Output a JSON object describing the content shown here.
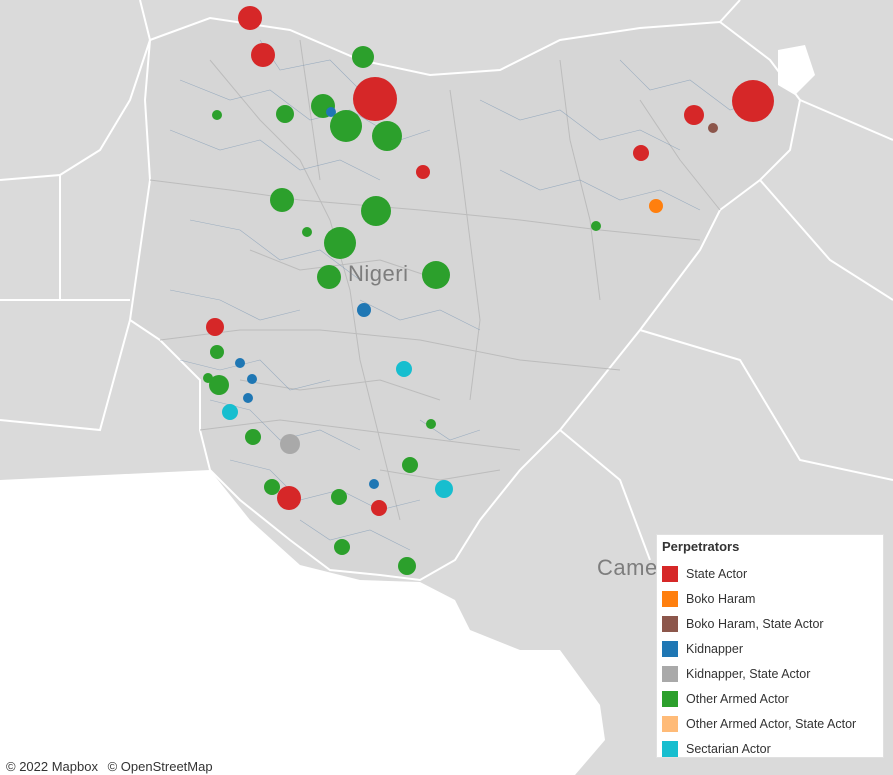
{
  "map": {
    "country_labels": {
      "nigeria": "Nigeri",
      "cameroon": "Camer"
    },
    "attribution": {
      "mapbox": "© 2022 Mapbox",
      "osm": "© OpenStreetMap"
    },
    "colors": {
      "land": "#dadada",
      "water": "#ffffff",
      "border": "#ffffff",
      "state_line": "#b9b9b9",
      "lga_line": "#5d83a8"
    }
  },
  "legend": {
    "title": "Perpetrators",
    "items": [
      {
        "label": "State Actor",
        "color": "#d62728"
      },
      {
        "label": "Boko Haram",
        "color": "#ff7f0e"
      },
      {
        "label": "Boko Haram, State Actor",
        "color": "#8c564b"
      },
      {
        "label": "Kidnapper",
        "color": "#1f77b4"
      },
      {
        "label": "Kidnapper, State Actor",
        "color": "#a9a9a9"
      },
      {
        "label": "Other Armed Actor",
        "color": "#2ca02c"
      },
      {
        "label": "Other Armed Actor, State Actor",
        "color": "#ffbb78"
      },
      {
        "label": "Sectarian Actor",
        "color": "#17becf"
      }
    ]
  }
}
